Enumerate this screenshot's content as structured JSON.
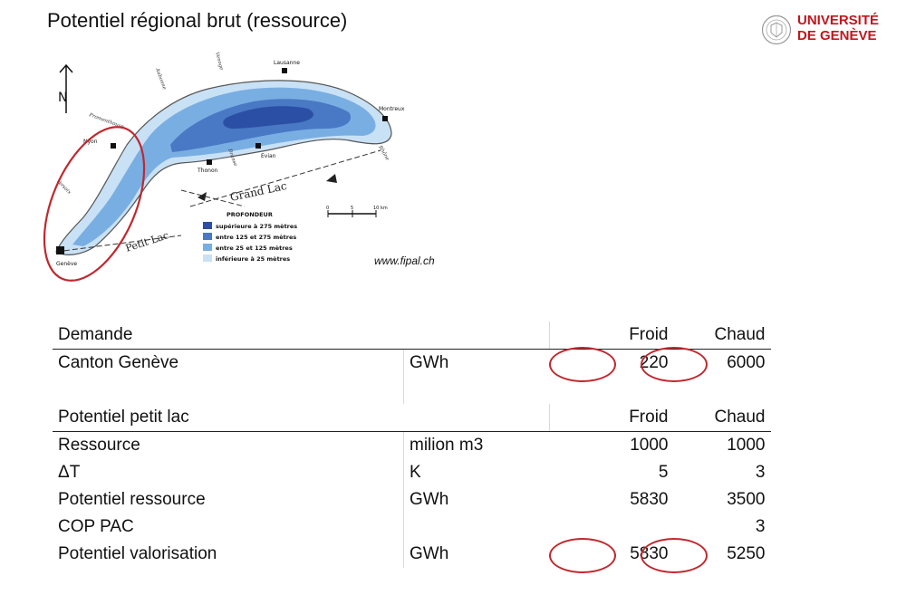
{
  "title": "Potentiel régional brut (ressource)",
  "logo": {
    "line1": "UNIVERSITÉ",
    "line2": "DE GENÈVE"
  },
  "map": {
    "cities": [
      "Lausanne",
      "Montreux",
      "Evian",
      "Thonon",
      "Nyon",
      "Genève"
    ],
    "rivers": [
      "Aubonne",
      "Venoge",
      "Dranse",
      "Rhône",
      "Promenthouse",
      "Versoix"
    ],
    "north": "N",
    "grand_lac": "Grand Lac",
    "petit_lac": "Petit Lac",
    "scale": [
      "0",
      "5",
      "10 km"
    ],
    "legend": {
      "title": "PROFONDEUR",
      "items": [
        {
          "label": "supérieure à 275 mètres",
          "color": "#2b4fa5"
        },
        {
          "label": "entre 125 et 275 mètres",
          "color": "#4978c4"
        },
        {
          "label": "entre 25 et 125 mètres",
          "color": "#79aee3"
        },
        {
          "label": "inférieure à 25 mètres",
          "color": "#c9e1f5"
        }
      ]
    }
  },
  "credit": "www.fipal.ch",
  "table": {
    "demand_header": {
      "label": "Demande",
      "unit": "",
      "froid": "Froid",
      "chaud": "Chaud"
    },
    "demand_row": {
      "label": "Canton Genève",
      "unit": "GWh",
      "froid": "220",
      "chaud": "6000"
    },
    "potential_header": {
      "label": "Potentiel petit lac",
      "unit": "",
      "froid": "Froid",
      "chaud": "Chaud"
    },
    "rows": [
      {
        "label": "Ressource",
        "unit": "milion m3",
        "froid": "1000",
        "chaud": "1000"
      },
      {
        "label": "ΔT",
        "unit": "K",
        "froid": "5",
        "chaud": "3"
      },
      {
        "label": "Potentiel ressource",
        "unit": "GWh",
        "froid": "5830",
        "chaud": "3500"
      },
      {
        "label": "COP PAC",
        "unit": "",
        "froid": "",
        "chaud": "3"
      },
      {
        "label": "Potentiel valorisation",
        "unit": "GWh",
        "froid": "5830",
        "chaud": "5250"
      }
    ]
  },
  "highlight_color": "#c0282e"
}
